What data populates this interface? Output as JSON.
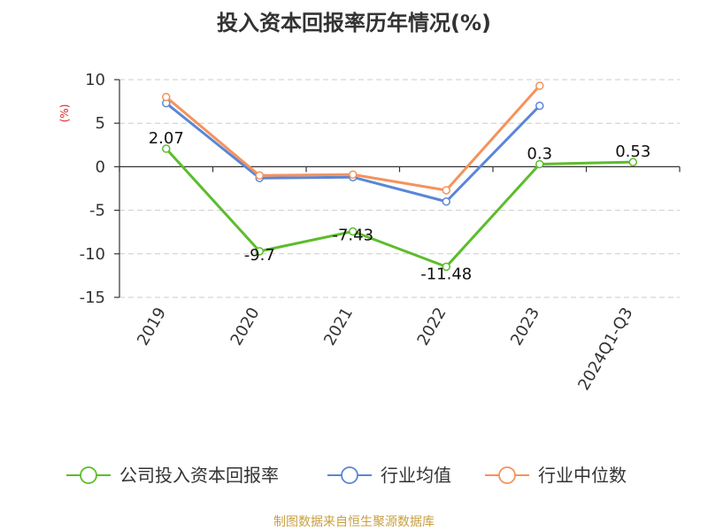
{
  "chart_data": {
    "type": "line",
    "title": "投入资本回报率历年情况(%)",
    "ylabel": "(%)",
    "xlabel": "",
    "categories": [
      "2019",
      "2020",
      "2021",
      "2022",
      "2023",
      "2024Q1-Q3"
    ],
    "ylim": [
      -15,
      10
    ],
    "yticks": [
      10,
      5,
      0,
      -5,
      -10,
      -15
    ],
    "grid": true,
    "legend_position": "bottom",
    "series": [
      {
        "name": "公司投入资本回报率",
        "color": "#5cbd2b",
        "values": [
          2.07,
          -9.7,
          -7.43,
          -11.48,
          0.3,
          0.53
        ],
        "labels": [
          "2.07",
          "-9.7",
          "-7.43",
          "-11.48",
          "0.3",
          "0.53"
        ]
      },
      {
        "name": "行业均值",
        "color": "#5a86d8",
        "values": [
          7.3,
          -1.3,
          -1.2,
          -4.0,
          7.0,
          null
        ]
      },
      {
        "name": "行业中位数",
        "color": "#f4935b",
        "values": [
          8.0,
          -1.0,
          -0.9,
          -2.7,
          9.3,
          null
        ]
      }
    ]
  },
  "footer": {
    "source": "制图数据来自恒生聚源数据库"
  }
}
